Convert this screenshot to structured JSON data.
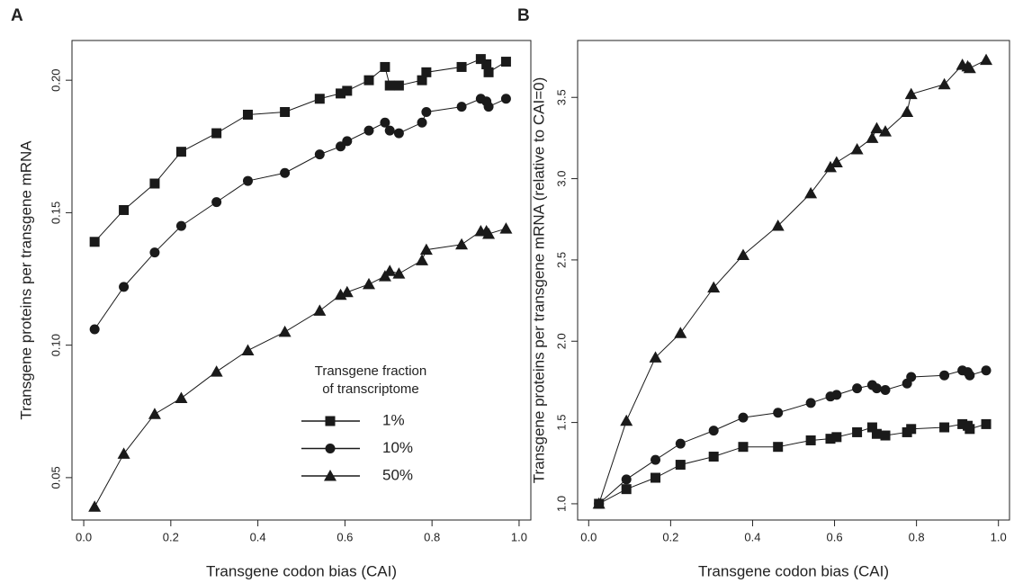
{
  "chart_data": [
    {
      "type": "line",
      "panel_label": "A",
      "x_label": "Transgene codon bias (CAI)",
      "y_label": "Transgene proteins per transgene mRNA",
      "x": [
        0.025,
        0.092,
        0.163,
        0.224,
        0.305,
        0.377,
        0.462,
        0.542,
        0.59,
        0.605,
        0.655,
        0.692,
        0.703,
        0.724,
        0.777,
        0.787,
        0.868,
        0.912,
        0.925,
        0.93,
        0.97
      ],
      "series": [
        {
          "name": "1%",
          "color": "#1a1a1a",
          "marker": "square",
          "values": [
            0.139,
            0.151,
            0.161,
            0.173,
            0.18,
            0.187,
            0.188,
            0.193,
            0.195,
            0.196,
            0.2,
            0.205,
            0.198,
            0.198,
            0.2,
            0.203,
            0.205,
            0.208,
            0.206,
            0.203,
            0.207
          ]
        },
        {
          "name": "10%",
          "color": "#1a1a1a",
          "marker": "circle",
          "values": [
            0.106,
            0.122,
            0.135,
            0.145,
            0.154,
            0.162,
            0.165,
            0.172,
            0.175,
            0.177,
            0.181,
            0.184,
            0.181,
            0.18,
            0.184,
            0.188,
            0.19,
            0.193,
            0.192,
            0.19,
            0.193
          ]
        },
        {
          "name": "50%",
          "color": "#1a1a1a",
          "marker": "triangle",
          "values": [
            0.039,
            0.059,
            0.074,
            0.08,
            0.09,
            0.098,
            0.105,
            0.113,
            0.119,
            0.12,
            0.123,
            0.126,
            0.128,
            0.127,
            0.132,
            0.136,
            0.138,
            0.143,
            0.143,
            0.142,
            0.144
          ]
        }
      ],
      "xlim": [
        -0.027,
        1.027
      ],
      "xticks": [
        {
          "value": 0,
          "label": "0.0"
        },
        0.2,
        0.4,
        0.6,
        0.8,
        {
          "value": 1,
          "label": "1.0"
        }
      ],
      "ylim": [
        0.034,
        0.215
      ],
      "yticks": [
        0.05,
        {
          "value": 0.1,
          "label": "0.10"
        },
        0.15,
        {
          "value": 0.2,
          "label": "0.20"
        }
      ],
      "legend": "bottom-right",
      "legend_title": [
        "Transgene fraction",
        "of transcriptome"
      ]
    },
    {
      "type": "line",
      "panel_label": "B",
      "x_label": "Transgene codon bias (CAI)",
      "y_label": "Transgene proteins per transgene mRNA (relative to CAI=0)",
      "x": [
        0.025,
        0.092,
        0.163,
        0.224,
        0.305,
        0.377,
        0.462,
        0.542,
        0.59,
        0.605,
        0.655,
        0.692,
        0.703,
        0.724,
        0.777,
        0.787,
        0.868,
        0.912,
        0.925,
        0.93,
        0.97
      ],
      "series": [
        {
          "name": "1%",
          "color": "#1a1a1a",
          "marker": "square",
          "values": [
            1.0,
            1.09,
            1.16,
            1.24,
            1.29,
            1.35,
            1.35,
            1.39,
            1.4,
            1.41,
            1.44,
            1.47,
            1.43,
            1.42,
            1.44,
            1.46,
            1.47,
            1.49,
            1.48,
            1.46,
            1.49
          ]
        },
        {
          "name": "10%",
          "color": "#1a1a1a",
          "marker": "circle",
          "values": [
            1.0,
            1.15,
            1.27,
            1.37,
            1.45,
            1.53,
            1.56,
            1.62,
            1.66,
            1.67,
            1.71,
            1.73,
            1.71,
            1.7,
            1.74,
            1.78,
            1.79,
            1.82,
            1.81,
            1.79,
            1.82
          ]
        },
        {
          "name": "50%",
          "color": "#1a1a1a",
          "marker": "triangle",
          "values": [
            1.0,
            1.51,
            1.9,
            2.05,
            2.33,
            2.53,
            2.71,
            2.91,
            3.07,
            3.1,
            3.18,
            3.25,
            3.31,
            3.29,
            3.41,
            3.52,
            3.58,
            3.7,
            3.69,
            3.68,
            3.73
          ]
        }
      ],
      "xlim": [
        -0.027,
        1.027
      ],
      "xticks": [
        {
          "value": 0,
          "label": "0.0"
        },
        0.2,
        0.4,
        0.6,
        0.8,
        {
          "value": 1,
          "label": "1.0"
        }
      ],
      "ylim": [
        0.9,
        3.85
      ],
      "yticks": [
        {
          "value": 1,
          "label": "1.0"
        },
        1.5,
        {
          "value": 2,
          "label": "2.0"
        },
        2.5,
        {
          "value": 3,
          "label": "3.0"
        },
        3.5
      ]
    }
  ]
}
